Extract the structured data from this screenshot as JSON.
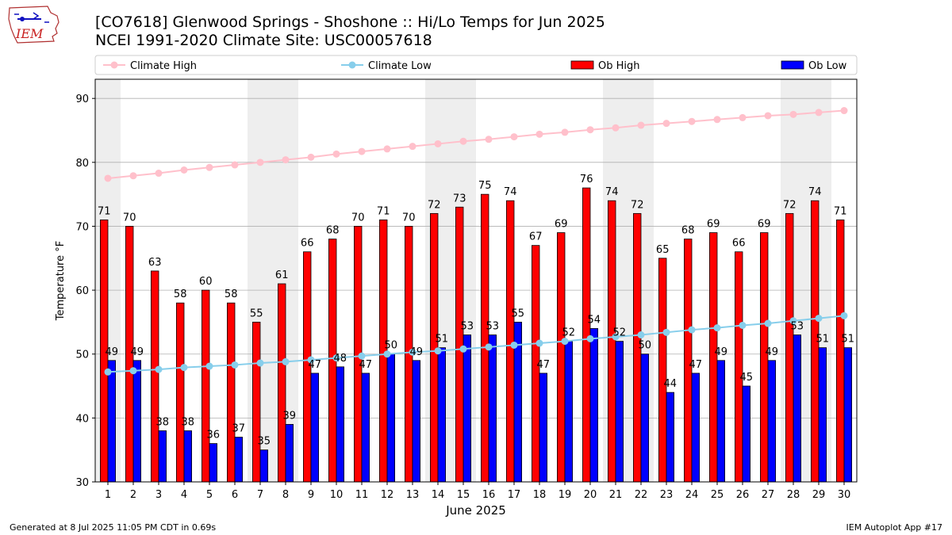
{
  "header": {
    "logo_text": "IEM",
    "title": "[CO7618] Glenwood Springs - Shoshone :: Hi/Lo Temps for Jun 2025",
    "subtitle": "NCEI 1991-2020 Climate Site: USC00057618"
  },
  "footer": {
    "generated": "Generated at 8 Jul 2025 11:05 PM CDT in 0.69s",
    "app": "IEM Autoplot App #17"
  },
  "colors": {
    "climate_high": "#ffc0cb",
    "climate_low": "#87ceeb",
    "ob_high": "#ff0000",
    "ob_low": "#0000ff",
    "weekend_shade": "#eeeeee",
    "grid": "#b0b0b0"
  },
  "chart_data": {
    "type": "bar",
    "xlabel": "June 2025",
    "ylabel": "Temperature °F",
    "ylim": [
      30,
      93
    ],
    "yticks": [
      30,
      40,
      50,
      60,
      70,
      80,
      90
    ],
    "grid": "horizontal",
    "legend_placement": "top, above plot",
    "shaded_days": [
      1,
      7,
      8,
      14,
      15,
      21,
      22,
      28,
      29
    ],
    "categories": [
      "1",
      "2",
      "3",
      "4",
      "5",
      "6",
      "7",
      "8",
      "9",
      "10",
      "11",
      "12",
      "13",
      "14",
      "15",
      "16",
      "17",
      "18",
      "19",
      "20",
      "21",
      "22",
      "23",
      "24",
      "25",
      "26",
      "27",
      "28",
      "29",
      "30"
    ],
    "series": [
      {
        "name": "Climate High",
        "type": "line",
        "values": [
          77.5,
          77.9,
          78.3,
          78.8,
          79.2,
          79.6,
          80.0,
          80.4,
          80.8,
          81.3,
          81.7,
          82.1,
          82.5,
          82.9,
          83.3,
          83.6,
          84.0,
          84.4,
          84.7,
          85.1,
          85.4,
          85.8,
          86.1,
          86.4,
          86.7,
          87.0,
          87.3,
          87.5,
          87.8,
          88.1
        ]
      },
      {
        "name": "Climate Low",
        "type": "line",
        "values": [
          47.2,
          47.4,
          47.6,
          47.9,
          48.1,
          48.3,
          48.6,
          48.8,
          49.1,
          49.4,
          49.7,
          50.0,
          50.3,
          50.5,
          50.8,
          51.1,
          51.4,
          51.7,
          52.0,
          52.4,
          52.7,
          53.0,
          53.4,
          53.8,
          54.1,
          54.5,
          54.8,
          55.2,
          55.6,
          56.0
        ]
      },
      {
        "name": "Ob High",
        "type": "bar",
        "values": [
          71,
          70,
          63,
          58,
          60,
          58,
          55,
          61,
          66,
          68,
          70,
          71,
          70,
          72,
          73,
          75,
          74,
          67,
          69,
          76,
          74,
          72,
          65,
          68,
          69,
          66,
          69,
          72,
          74,
          71
        ]
      },
      {
        "name": "Ob Low",
        "type": "bar",
        "values": [
          49,
          49,
          38,
          38,
          36,
          37,
          35,
          39,
          47,
          48,
          47,
          50,
          49,
          51,
          53,
          53,
          55,
          47,
          52,
          54,
          52,
          50,
          44,
          47,
          49,
          45,
          49,
          53,
          51,
          51
        ]
      }
    ]
  }
}
